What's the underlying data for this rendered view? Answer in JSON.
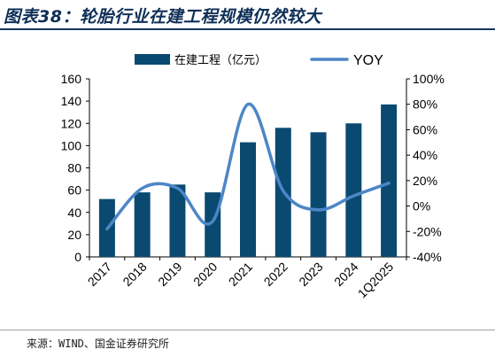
{
  "header": {
    "title": "图表38：轮胎行业在建工程规模仍然较大"
  },
  "footer": {
    "source": "来源：WIND、国金证券研究所"
  },
  "colors": {
    "bar": "#0b4a70",
    "line": "#4c86c7",
    "title": "#0e2f57"
  },
  "chart_data": {
    "type": "bar",
    "categories": [
      "2017",
      "2018",
      "2019",
      "2020",
      "2021",
      "2022",
      "2023",
      "2024",
      "1Q2025"
    ],
    "series": [
      {
        "name": "在建工程（亿元）",
        "type": "bar",
        "axis": "left",
        "values": [
          52,
          58,
          65,
          58,
          103,
          116,
          112,
          120,
          137
        ]
      },
      {
        "name": "YOY",
        "type": "line",
        "axis": "right",
        "unit": "%",
        "values": [
          -18,
          14,
          14,
          -12,
          80,
          12,
          -3,
          8,
          18
        ]
      }
    ],
    "ylim_left": [
      0,
      160
    ],
    "yticks_left": [
      "0",
      "20",
      "40",
      "60",
      "80",
      "100",
      "120",
      "140",
      "160"
    ],
    "ylim_right": [
      -40,
      100
    ],
    "yticks_right": [
      "-40%",
      "-20%",
      "0%",
      "20%",
      "40%",
      "60%",
      "80%",
      "100%"
    ],
    "legend_position": "top-center",
    "grid": false
  }
}
